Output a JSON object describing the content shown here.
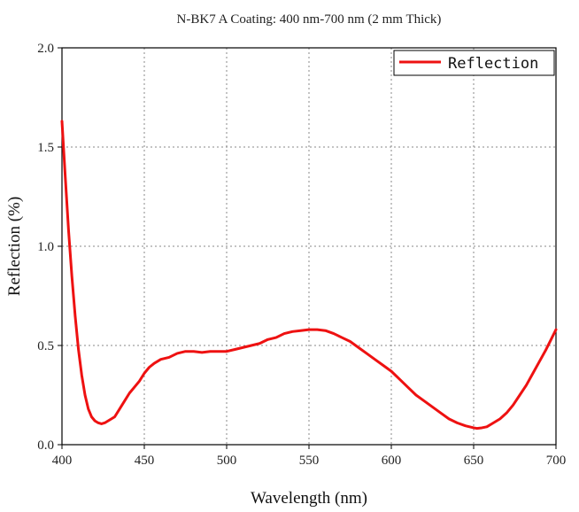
{
  "chart_data": {
    "type": "line",
    "title": "N-BK7 A Coating: 400 nm-700 nm (2 mm Thick)",
    "xlabel": "Wavelength (nm)",
    "ylabel": "Reflection (%)",
    "xlim": [
      400,
      700
    ],
    "ylim": [
      0.0,
      2.0
    ],
    "x_ticks": [
      "400",
      "450",
      "500",
      "550",
      "600",
      "650",
      "700"
    ],
    "y_ticks": [
      "0.0",
      "0.5",
      "1.0",
      "1.5",
      "2.0"
    ],
    "grid": true,
    "legend": {
      "position": "top-right",
      "entries": [
        "Reflection"
      ]
    },
    "series": [
      {
        "name": "Reflection",
        "color": "#ee1111",
        "points": [
          [
            400,
            1.63
          ],
          [
            402,
            1.35
          ],
          [
            404,
            1.08
          ],
          [
            406,
            0.85
          ],
          [
            408,
            0.65
          ],
          [
            410,
            0.48
          ],
          [
            412,
            0.35
          ],
          [
            414,
            0.25
          ],
          [
            416,
            0.18
          ],
          [
            418,
            0.14
          ],
          [
            420,
            0.12
          ],
          [
            422,
            0.11
          ],
          [
            424,
            0.105
          ],
          [
            426,
            0.11
          ],
          [
            428,
            0.12
          ],
          [
            430,
            0.13
          ],
          [
            432,
            0.14
          ],
          [
            435,
            0.18
          ],
          [
            438,
            0.22
          ],
          [
            441,
            0.26
          ],
          [
            444,
            0.29
          ],
          [
            447,
            0.32
          ],
          [
            450,
            0.36
          ],
          [
            453,
            0.39
          ],
          [
            456,
            0.41
          ],
          [
            460,
            0.43
          ],
          [
            465,
            0.44
          ],
          [
            470,
            0.46
          ],
          [
            475,
            0.47
          ],
          [
            480,
            0.47
          ],
          [
            485,
            0.465
          ],
          [
            490,
            0.47
          ],
          [
            495,
            0.47
          ],
          [
            500,
            0.47
          ],
          [
            505,
            0.48
          ],
          [
            510,
            0.49
          ],
          [
            515,
            0.5
          ],
          [
            520,
            0.51
          ],
          [
            525,
            0.53
          ],
          [
            530,
            0.54
          ],
          [
            535,
            0.56
          ],
          [
            540,
            0.57
          ],
          [
            545,
            0.575
          ],
          [
            550,
            0.58
          ],
          [
            555,
            0.58
          ],
          [
            560,
            0.575
          ],
          [
            565,
            0.56
          ],
          [
            570,
            0.54
          ],
          [
            575,
            0.52
          ],
          [
            580,
            0.49
          ],
          [
            585,
            0.46
          ],
          [
            590,
            0.43
          ],
          [
            595,
            0.4
          ],
          [
            600,
            0.37
          ],
          [
            605,
            0.33
          ],
          [
            610,
            0.29
          ],
          [
            615,
            0.25
          ],
          [
            620,
            0.22
          ],
          [
            625,
            0.19
          ],
          [
            630,
            0.16
          ],
          [
            635,
            0.13
          ],
          [
            640,
            0.11
          ],
          [
            645,
            0.095
          ],
          [
            650,
            0.085
          ],
          [
            652,
            0.082
          ],
          [
            655,
            0.085
          ],
          [
            658,
            0.09
          ],
          [
            662,
            0.11
          ],
          [
            666,
            0.13
          ],
          [
            670,
            0.16
          ],
          [
            674,
            0.2
          ],
          [
            678,
            0.25
          ],
          [
            682,
            0.3
          ],
          [
            686,
            0.36
          ],
          [
            690,
            0.42
          ],
          [
            694,
            0.48
          ],
          [
            697,
            0.53
          ],
          [
            700,
            0.58
          ]
        ]
      }
    ]
  }
}
